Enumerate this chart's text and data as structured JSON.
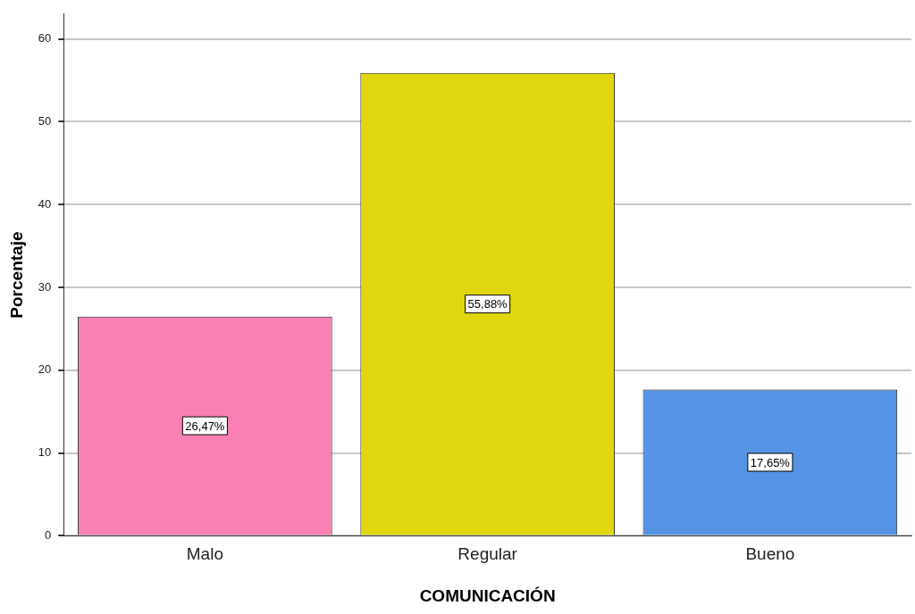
{
  "chart_data": {
    "type": "bar",
    "xlabel": "COMUNICACIÓN",
    "ylabel": "Porcentaje",
    "categories": [
      "Malo",
      "Regular",
      "Bueno"
    ],
    "values": [
      26.47,
      55.88,
      17.65
    ],
    "colors": [
      "#f880b2",
      "#e1d70e",
      "#5594e4"
    ],
    "value_labels": [
      "26,47%",
      "55,88%",
      "17,65%"
    ],
    "ylim": [
      0,
      63
    ],
    "yticks": [
      0,
      10,
      20,
      30,
      40,
      50,
      60
    ],
    "grid": "y",
    "legend": false
  }
}
